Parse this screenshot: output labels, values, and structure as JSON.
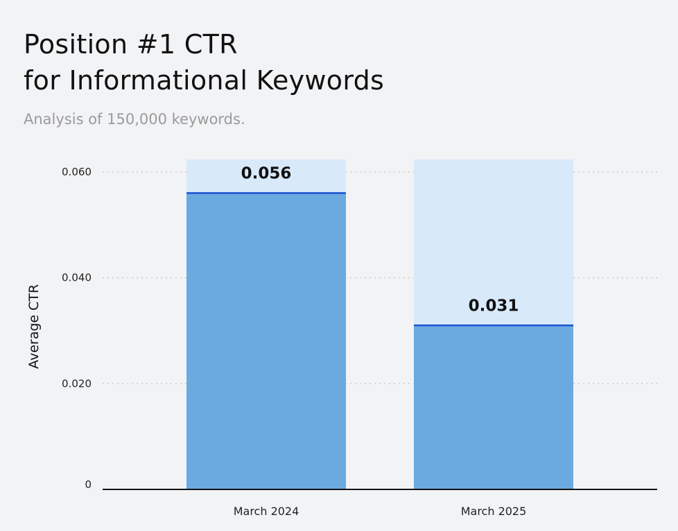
{
  "title_line1": "Position #1 CTR",
  "title_line2": "for Informational Keywords",
  "subtitle": "Analysis of 150,000 keywords.",
  "colors": {
    "bar_fill": "#6aaae1",
    "bar_background": "#d8eafa",
    "bar_top_line": "#1d4fd1",
    "grid": "#c9c9c9",
    "axis": "#111111",
    "page_background": "#f2f3f5"
  },
  "chart_data": {
    "type": "bar",
    "categories": [
      "March 2024",
      "March 2025"
    ],
    "values": [
      0.056,
      0.031
    ],
    "data_labels": [
      "0.056",
      "0.031"
    ],
    "ylabel": "Average CTR",
    "xlabel": "",
    "ylim": [
      0,
      0.06
    ],
    "yticks": [
      0,
      0.02,
      0.04,
      0.06
    ],
    "ytick_labels": [
      "0",
      "0.020",
      "0.040",
      "0.060"
    ],
    "grid": "horizontal dotted"
  }
}
